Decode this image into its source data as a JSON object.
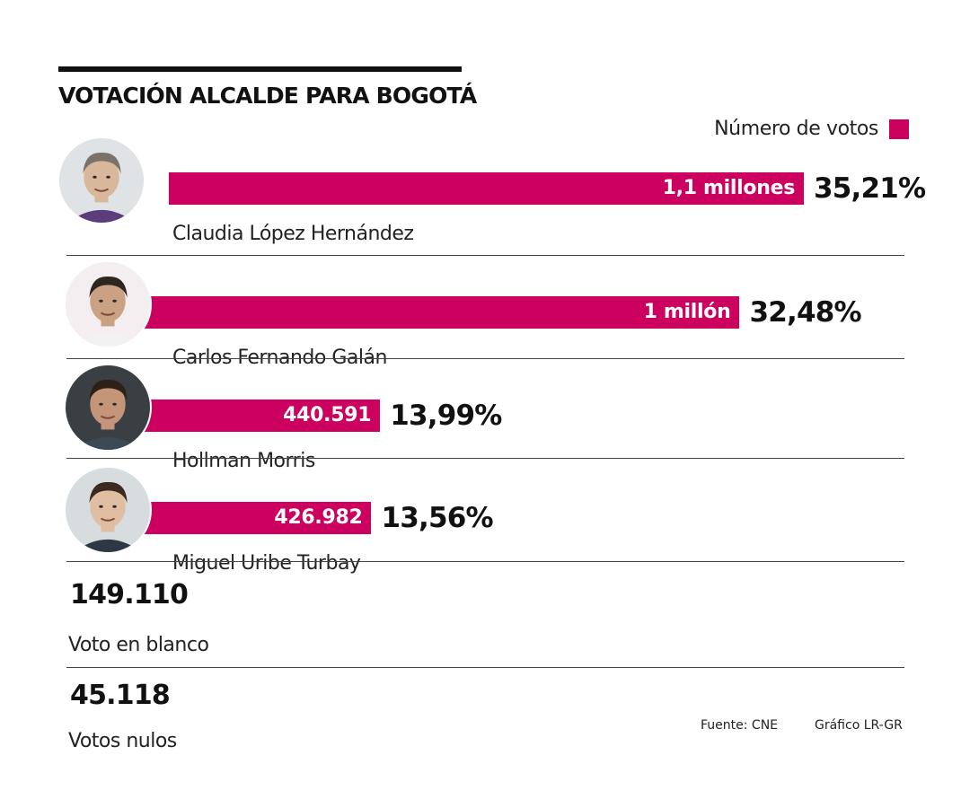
{
  "colors": {
    "accent": "#cc005f",
    "divider": "#444444",
    "text": "#111111"
  },
  "title": "VOTACIÓN ALCALDE PARA BOGOTÁ",
  "legend": {
    "label": "Número de votos"
  },
  "chart_data": {
    "type": "bar",
    "orientation": "horizontal",
    "title": "VOTACIÓN ALCALDE PARA BOGOTÁ",
    "legend": [
      "Número de votos"
    ],
    "legend_position": "top-right",
    "grid": false,
    "xlim": [
      0,
      1100000
    ],
    "categories": [
      "Claudia López Hernández",
      "Carlos Fernando Galán",
      "Hollman Morris",
      "Miguel Uribe Turbay"
    ],
    "values": [
      1100000,
      1000000,
      440591,
      426982
    ],
    "data_labels": [
      "1,1 millones",
      "1 millón",
      "440.591",
      "426.982"
    ],
    "percentages": [
      "35,21%",
      "32,48%",
      "13,99%",
      "13,56%"
    ],
    "avatar_icons": [
      "portrait-claudia-icon",
      "portrait-carlos-icon",
      "portrait-hollman-icon",
      "portrait-miguel-icon"
    ]
  },
  "extras": [
    {
      "value": "149.110",
      "label": "Voto en blanco"
    },
    {
      "value": "45.118",
      "label": "Votos nulos"
    }
  ],
  "footer": {
    "source": "Fuente:  CNE",
    "credit": "Gráfico LR-GR"
  }
}
